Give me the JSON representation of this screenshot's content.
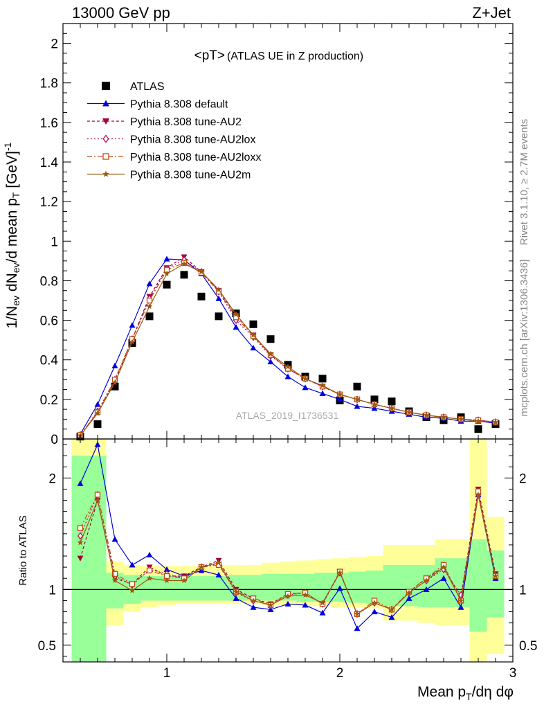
{
  "header": {
    "left": "13000 GeV pp",
    "right": "Z+Jet"
  },
  "side_labels": {
    "rivet": "Rivet 3.1.10, ≥ 2.7M events",
    "mcplots": "mcplots.cern.ch [arXiv:1306.3436]"
  },
  "chart_data": [
    {
      "type": "scatter",
      "panel": "main",
      "title_main": "<pT>",
      "title_sub": "(ATLAS UE in Z production)",
      "watermark": "ATLAS_2019_I1736531",
      "ylabel": "1/N_ev dN_ev/d mean p_T [GeV]^-1",
      "xlim": [
        0.4,
        3.0
      ],
      "ylim": [
        0,
        2.1
      ],
      "yticks": [
        0,
        0.2,
        0.4,
        0.6,
        0.8,
        1,
        1.2,
        1.4,
        1.6,
        1.8,
        2
      ],
      "ytick_labels": [
        "0",
        "0.2",
        "0.4",
        "0.6",
        "0.8",
        "1",
        "1.2",
        "1.4",
        "1.6",
        "1.8",
        "2"
      ],
      "x": [
        0.5,
        0.6,
        0.7,
        0.8,
        0.9,
        1.0,
        1.1,
        1.2,
        1.3,
        1.4,
        1.5,
        1.6,
        1.7,
        1.8,
        1.9,
        2.0,
        2.1,
        2.2,
        2.3,
        2.4,
        2.5,
        2.6,
        2.7,
        2.8,
        2.9
      ],
      "series": [
        {
          "name": "ATLAS",
          "color": "#000000",
          "marker": "square",
          "dash": "",
          "values": [
            0.012,
            0.075,
            0.265,
            0.485,
            0.62,
            0.78,
            0.83,
            0.72,
            0.62,
            0.635,
            0.58,
            0.505,
            0.375,
            0.315,
            0.305,
            0.195,
            0.265,
            0.2,
            0.19,
            0.14,
            0.11,
            0.095,
            0.11,
            0.05,
            0.075
          ]
        },
        {
          "name": "Pythia 8.308 default",
          "color": "#0000dd",
          "marker": "triangle-up",
          "dash": "",
          "values": [
            0.025,
            0.175,
            0.37,
            0.575,
            0.785,
            0.91,
            0.905,
            0.835,
            0.71,
            0.565,
            0.46,
            0.39,
            0.315,
            0.26,
            0.23,
            0.2,
            0.165,
            0.155,
            0.14,
            0.125,
            0.11,
            0.105,
            0.09,
            0.09,
            0.08
          ]
        },
        {
          "name": "Pythia 8.308 tune-AU2",
          "color": "#a0003c",
          "marker": "triangle-down",
          "dash": "4,3",
          "values": [
            0.015,
            0.135,
            0.29,
            0.505,
            0.72,
            0.865,
            0.92,
            0.845,
            0.75,
            0.625,
            0.525,
            0.425,
            0.355,
            0.305,
            0.265,
            0.225,
            0.2,
            0.175,
            0.155,
            0.135,
            0.12,
            0.11,
            0.1,
            0.095,
            0.085
          ]
        },
        {
          "name": "Pythia 8.308 tune-AU2lox",
          "color": "#b0105a",
          "marker": "diamond-open",
          "dash": "2,3",
          "values": [
            0.018,
            0.14,
            0.3,
            0.505,
            0.71,
            0.86,
            0.905,
            0.845,
            0.745,
            0.6,
            0.515,
            0.42,
            0.355,
            0.305,
            0.265,
            0.225,
            0.2,
            0.175,
            0.155,
            0.135,
            0.12,
            0.11,
            0.1,
            0.095,
            0.085
          ]
        },
        {
          "name": "Pythia 8.308 tune-AU2loxx",
          "color": "#c04a10",
          "marker": "square-open",
          "dash": "7,3,2,3",
          "values": [
            0.02,
            0.135,
            0.3,
            0.505,
            0.7,
            0.855,
            0.89,
            0.84,
            0.745,
            0.615,
            0.52,
            0.425,
            0.355,
            0.305,
            0.265,
            0.225,
            0.2,
            0.175,
            0.155,
            0.135,
            0.12,
            0.11,
            0.1,
            0.095,
            0.085
          ]
        },
        {
          "name": "Pythia 8.308 tune-AU2m",
          "color": "#9a5a10",
          "marker": "star",
          "dash": "",
          "values": [
            0.017,
            0.13,
            0.285,
            0.49,
            0.67,
            0.835,
            0.885,
            0.845,
            0.755,
            0.63,
            0.525,
            0.43,
            0.365,
            0.305,
            0.27,
            0.225,
            0.2,
            0.175,
            0.155,
            0.135,
            0.12,
            0.11,
            0.1,
            0.09,
            0.085
          ]
        }
      ]
    },
    {
      "type": "scatter",
      "panel": "ratio",
      "ylabel": "Ratio to ATLAS",
      "xlabel": "Mean p_T/dη dφ",
      "xlim": [
        0.4,
        3.0
      ],
      "ylim": [
        0.35,
        2.35
      ],
      "xticks": [
        1,
        2,
        3
      ],
      "xtick_labels": [
        "1",
        "2",
        "3"
      ],
      "yticks": [
        0.5,
        1,
        2
      ],
      "ytick_labels": [
        "0.5",
        "1",
        "2"
      ],
      "x": [
        0.5,
        0.6,
        0.7,
        0.8,
        0.9,
        1.0,
        1.1,
        1.2,
        1.3,
        1.4,
        1.5,
        1.6,
        1.7,
        1.8,
        1.9,
        2.0,
        2.1,
        2.2,
        2.3,
        2.4,
        2.5,
        2.6,
        2.7,
        2.8,
        2.9
      ],
      "bands": {
        "edges": [
          0.45,
          0.55,
          0.65,
          0.75,
          0.85,
          0.95,
          1.05,
          1.15,
          1.25,
          1.35,
          1.45,
          1.55,
          1.65,
          1.75,
          1.85,
          1.95,
          2.05,
          2.15,
          2.25,
          2.35,
          2.45,
          2.55,
          2.65,
          2.75,
          2.85,
          2.95
        ],
        "yellow_color": "#ffff99",
        "green_color": "#99ff99",
        "yellow_lo": [
          0.35,
          0.35,
          0.68,
          0.8,
          0.84,
          0.86,
          0.87,
          0.87,
          0.87,
          0.87,
          0.87,
          0.86,
          0.86,
          0.85,
          0.85,
          0.84,
          0.84,
          0.83,
          0.72,
          0.72,
          0.7,
          0.68,
          0.68,
          0.35,
          0.42,
          0.42
        ],
        "yellow_hi": [
          2.35,
          2.35,
          1.25,
          1.22,
          1.21,
          1.21,
          1.21,
          1.21,
          1.22,
          1.22,
          1.22,
          1.24,
          1.25,
          1.26,
          1.27,
          1.28,
          1.29,
          1.3,
          1.4,
          1.4,
          1.4,
          1.45,
          1.45,
          2.35,
          1.65,
          1.65
        ],
        "green_lo": [
          0.35,
          0.35,
          0.83,
          0.87,
          0.9,
          0.9,
          0.9,
          0.9,
          0.9,
          0.9,
          0.9,
          0.9,
          0.9,
          0.89,
          0.89,
          0.89,
          0.88,
          0.87,
          0.85,
          0.85,
          0.84,
          0.84,
          0.84,
          0.62,
          0.75,
          0.75
        ],
        "green_hi": [
          2.2,
          2.2,
          1.15,
          1.13,
          1.12,
          1.12,
          1.12,
          1.12,
          1.12,
          1.13,
          1.13,
          1.14,
          1.14,
          1.14,
          1.15,
          1.15,
          1.16,
          1.17,
          1.22,
          1.22,
          1.22,
          1.28,
          1.28,
          1.45,
          1.35,
          1.35
        ]
      },
      "series": [
        {
          "name": "Pythia 8.308 default",
          "color": "#0000dd",
          "marker": "triangle-up",
          "dash": "",
          "values": [
            1.95,
            2.3,
            1.45,
            1.22,
            1.31,
            1.18,
            1.12,
            1.17,
            1.13,
            0.92,
            0.84,
            0.82,
            0.87,
            0.86,
            0.79,
            1.01,
            0.65,
            0.8,
            0.75,
            0.92,
            1.0,
            1.1,
            0.84,
            1.85,
            1.1
          ]
        },
        {
          "name": "Pythia 8.308 tune-AU2",
          "color": "#a0003c",
          "marker": "triangle-down",
          "dash": "4,3",
          "values": [
            1.28,
            1.8,
            1.1,
            1.05,
            1.2,
            1.12,
            1.12,
            1.2,
            1.26,
            1.0,
            0.92,
            0.87,
            0.96,
            0.97,
            0.87,
            1.16,
            0.78,
            0.88,
            0.82,
            0.98,
            1.1,
            1.2,
            0.93,
            1.9,
            1.14
          ]
        },
        {
          "name": "Pythia 8.308 tune-AU2lox",
          "color": "#b0105a",
          "marker": "diamond-open",
          "dash": "2,3",
          "values": [
            1.48,
            1.85,
            1.12,
            1.04,
            1.18,
            1.14,
            1.1,
            1.2,
            1.23,
            0.97,
            0.9,
            0.86,
            0.95,
            0.97,
            0.87,
            1.15,
            0.78,
            0.88,
            0.82,
            0.97,
            1.08,
            1.18,
            0.95,
            1.85,
            1.12
          ]
        },
        {
          "name": "Pythia 8.308 tune-AU2loxx",
          "color": "#c04a10",
          "marker": "square-open",
          "dash": "7,3,2,3",
          "values": [
            1.55,
            1.85,
            1.14,
            1.05,
            1.17,
            1.12,
            1.1,
            1.2,
            1.22,
            0.98,
            0.92,
            0.86,
            0.96,
            0.97,
            0.87,
            1.16,
            0.78,
            0.9,
            0.82,
            0.98,
            1.1,
            1.22,
            0.9,
            1.88,
            1.12
          ]
        },
        {
          "name": "Pythia 8.308 tune-AU2m",
          "color": "#9a5a10",
          "marker": "star",
          "dash": "",
          "values": [
            1.42,
            1.8,
            1.08,
            0.99,
            1.1,
            1.08,
            1.08,
            1.2,
            1.24,
            0.98,
            0.9,
            0.86,
            0.94,
            0.95,
            0.88,
            1.15,
            0.78,
            0.88,
            0.82,
            0.97,
            1.08,
            1.2,
            0.9,
            1.85,
            1.12
          ]
        }
      ]
    }
  ]
}
